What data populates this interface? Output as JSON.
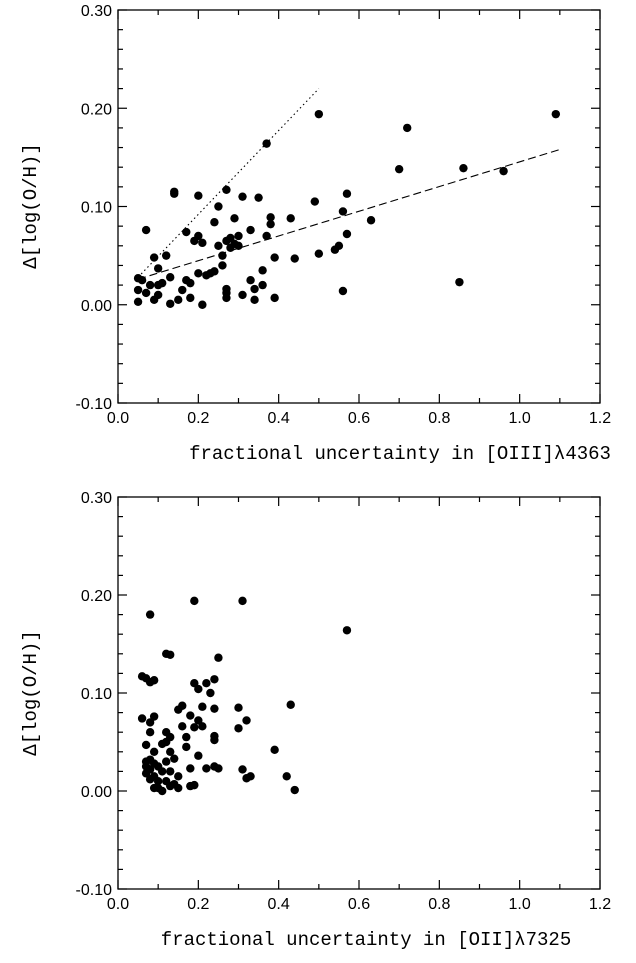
{
  "chart_data": [
    {
      "type": "scatter",
      "xlabel": "fractional uncertainty in [OIII]λ4363",
      "ylabel": "Δ[log(O/H)]",
      "xlim": [
        0.0,
        1.2
      ],
      "ylim": [
        -0.1,
        0.3
      ],
      "xticks": [
        "0.0",
        "0.2",
        "0.4",
        "0.6",
        "0.8",
        "1.0",
        "1.2"
      ],
      "yticks": [
        "-0.10",
        "0.00",
        "0.10",
        "0.20",
        "0.30"
      ],
      "grid": false,
      "series": [
        {
          "style": "points",
          "points": [
            [
              0.05,
              0.003
            ],
            [
              0.05,
              0.015
            ],
            [
              0.05,
              0.027
            ],
            [
              0.06,
              0.025
            ],
            [
              0.07,
              0.076
            ],
            [
              0.07,
              0.012
            ],
            [
              0.08,
              0.02
            ],
            [
              0.09,
              0.005
            ],
            [
              0.09,
              0.048
            ],
            [
              0.1,
              0.037
            ],
            [
              0.1,
              0.02
            ],
            [
              0.1,
              0.01
            ],
            [
              0.11,
              0.022
            ],
            [
              0.12,
              0.05
            ],
            [
              0.13,
              0.028
            ],
            [
              0.13,
              0.001
            ],
            [
              0.14,
              0.115
            ],
            [
              0.14,
              0.113
            ],
            [
              0.15,
              0.005
            ],
            [
              0.16,
              0.015
            ],
            [
              0.17,
              0.074
            ],
            [
              0.17,
              0.025
            ],
            [
              0.18,
              0.007
            ],
            [
              0.18,
              0.022
            ],
            [
              0.19,
              0.065
            ],
            [
              0.2,
              0.111
            ],
            [
              0.2,
              0.07
            ],
            [
              0.2,
              0.032
            ],
            [
              0.21,
              0.063
            ],
            [
              0.21,
              0.0
            ],
            [
              0.22,
              0.03
            ],
            [
              0.23,
              0.032
            ],
            [
              0.24,
              0.034
            ],
            [
              0.24,
              0.084
            ],
            [
              0.25,
              0.1
            ],
            [
              0.25,
              0.06
            ],
            [
              0.26,
              0.05
            ],
            [
              0.26,
              0.04
            ],
            [
              0.27,
              0.117
            ],
            [
              0.27,
              0.065
            ],
            [
              0.27,
              0.016
            ],
            [
              0.27,
              0.012
            ],
            [
              0.27,
              0.007
            ],
            [
              0.28,
              0.058
            ],
            [
              0.28,
              0.068
            ],
            [
              0.29,
              0.062
            ],
            [
              0.29,
              0.088
            ],
            [
              0.3,
              0.07
            ],
            [
              0.3,
              0.06
            ],
            [
              0.31,
              0.11
            ],
            [
              0.31,
              0.01
            ],
            [
              0.33,
              0.076
            ],
            [
              0.33,
              0.025
            ],
            [
              0.34,
              0.016
            ],
            [
              0.34,
              0.005
            ],
            [
              0.35,
              0.109
            ],
            [
              0.36,
              0.035
            ],
            [
              0.36,
              0.02
            ],
            [
              0.37,
              0.164
            ],
            [
              0.37,
              0.07
            ],
            [
              0.38,
              0.089
            ],
            [
              0.38,
              0.082
            ],
            [
              0.39,
              0.007
            ],
            [
              0.39,
              0.048
            ],
            [
              0.43,
              0.088
            ],
            [
              0.44,
              0.047
            ],
            [
              0.49,
              0.105
            ],
            [
              0.5,
              0.194
            ],
            [
              0.5,
              0.052
            ],
            [
              0.54,
              0.056
            ],
            [
              0.55,
              0.06
            ],
            [
              0.56,
              0.095
            ],
            [
              0.56,
              0.014
            ],
            [
              0.57,
              0.072
            ],
            [
              0.57,
              0.113
            ],
            [
              0.63,
              0.086
            ],
            [
              0.7,
              0.138
            ],
            [
              0.72,
              0.18
            ],
            [
              0.85,
              0.023
            ],
            [
              0.86,
              0.139
            ],
            [
              0.96,
              0.136
            ],
            [
              1.09,
              0.194
            ]
          ]
        },
        {
          "style": "dotted",
          "line": [
            [
              0.05,
              0.028
            ],
            [
              0.5,
              0.22
            ]
          ]
        },
        {
          "style": "dashed",
          "line": [
            [
              0.05,
              0.026
            ],
            [
              1.1,
              0.158
            ]
          ]
        }
      ]
    },
    {
      "type": "scatter",
      "xlabel": "fractional uncertainty in [OII]λ7325",
      "ylabel": "Δ[log(O/H)]",
      "xlim": [
        0.0,
        1.2
      ],
      "ylim": [
        -0.1,
        0.3
      ],
      "xticks": [
        "0.0",
        "0.2",
        "0.4",
        "0.6",
        "0.8",
        "1.0",
        "1.2"
      ],
      "yticks": [
        "-0.10",
        "0.00",
        "0.10",
        "0.20",
        "0.30"
      ],
      "grid": false,
      "series": [
        {
          "style": "points",
          "points": [
            [
              0.06,
              0.117
            ],
            [
              0.06,
              0.074
            ],
            [
              0.07,
              0.115
            ],
            [
              0.07,
              0.047
            ],
            [
              0.07,
              0.03
            ],
            [
              0.07,
              0.025
            ],
            [
              0.07,
              0.018
            ],
            [
              0.08,
              0.18
            ],
            [
              0.08,
              0.111
            ],
            [
              0.08,
              0.07
            ],
            [
              0.08,
              0.06
            ],
            [
              0.08,
              0.032
            ],
            [
              0.08,
              0.022
            ],
            [
              0.08,
              0.012
            ],
            [
              0.09,
              0.113
            ],
            [
              0.09,
              0.076
            ],
            [
              0.09,
              0.04
            ],
            [
              0.09,
              0.028
            ],
            [
              0.09,
              0.015
            ],
            [
              0.09,
              0.003
            ],
            [
              0.1,
              0.025
            ],
            [
              0.1,
              0.01
            ],
            [
              0.1,
              0.003
            ],
            [
              0.11,
              0.0
            ],
            [
              0.11,
              0.02
            ],
            [
              0.11,
              0.048
            ],
            [
              0.12,
              0.14
            ],
            [
              0.12,
              0.06
            ],
            [
              0.12,
              0.05
            ],
            [
              0.12,
              0.03
            ],
            [
              0.12,
              0.01
            ],
            [
              0.13,
              0.139
            ],
            [
              0.13,
              0.055
            ],
            [
              0.13,
              0.04
            ],
            [
              0.13,
              0.02
            ],
            [
              0.13,
              0.005
            ],
            [
              0.14,
              0.033
            ],
            [
              0.14,
              0.007
            ],
            [
              0.15,
              0.083
            ],
            [
              0.15,
              0.015
            ],
            [
              0.15,
              0.003
            ],
            [
              0.16,
              0.087
            ],
            [
              0.16,
              0.066
            ],
            [
              0.17,
              0.055
            ],
            [
              0.17,
              0.045
            ],
            [
              0.18,
              0.005
            ],
            [
              0.18,
              0.077
            ],
            [
              0.18,
              0.023
            ],
            [
              0.19,
              0.11
            ],
            [
              0.19,
              0.194
            ],
            [
              0.19,
              0.065
            ],
            [
              0.19,
              0.006
            ],
            [
              0.2,
              0.104
            ],
            [
              0.2,
              0.072
            ],
            [
              0.2,
              0.036
            ],
            [
              0.21,
              0.086
            ],
            [
              0.21,
              0.066
            ],
            [
              0.22,
              0.11
            ],
            [
              0.22,
              0.023
            ],
            [
              0.23,
              0.1
            ],
            [
              0.24,
              0.114
            ],
            [
              0.24,
              0.084
            ],
            [
              0.24,
              0.056
            ],
            [
              0.24,
              0.052
            ],
            [
              0.24,
              0.025
            ],
            [
              0.25,
              0.136
            ],
            [
              0.25,
              0.023
            ],
            [
              0.3,
              0.085
            ],
            [
              0.3,
              0.064
            ],
            [
              0.31,
              0.194
            ],
            [
              0.31,
              0.022
            ],
            [
              0.32,
              0.072
            ],
            [
              0.32,
              0.013
            ],
            [
              0.33,
              0.015
            ],
            [
              0.39,
              0.042
            ],
            [
              0.42,
              0.015
            ],
            [
              0.43,
              0.088
            ],
            [
              0.44,
              0.001
            ],
            [
              0.57,
              0.164
            ]
          ]
        }
      ]
    }
  ]
}
